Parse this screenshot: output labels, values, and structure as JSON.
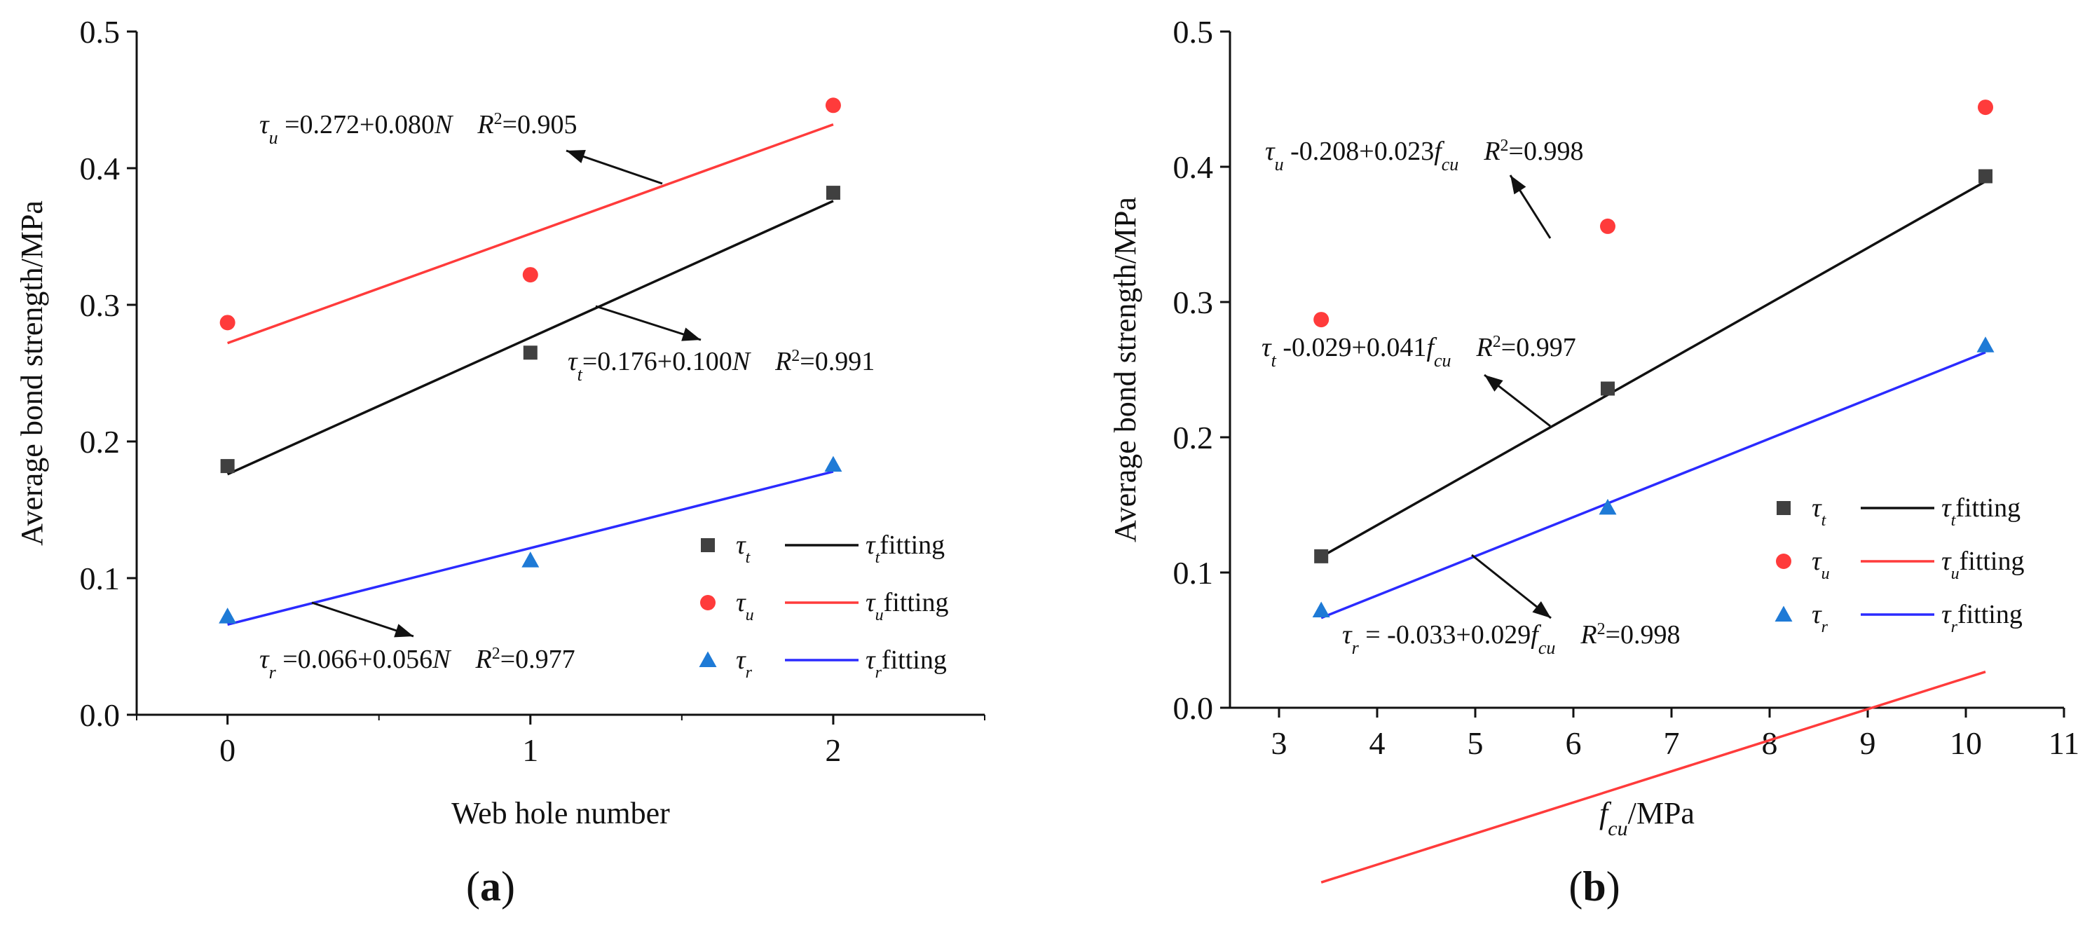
{
  "chart_data": [
    {
      "type": "scatter",
      "panel_label": "(a)",
      "panel_letter": "a",
      "xlabel": "Web hole number",
      "ylabel": "Average bond strength/MPa",
      "xlim": [
        -0.3,
        2.5
      ],
      "ylim": [
        0,
        0.5
      ],
      "xticks": [
        0,
        1,
        2
      ],
      "yticks": [
        "0.0",
        "0.1",
        "0.2",
        "0.3",
        "0.4",
        "0.5"
      ],
      "series": [
        {
          "key": "t",
          "name": "τ",
          "sub": "t",
          "color": "#404040",
          "marker": "square",
          "x": [
            0,
            1,
            2
          ],
          "y": [
            0.182,
            0.265,
            0.382
          ],
          "fit": {
            "intercept": 0.176,
            "slope": 0.1
          }
        },
        {
          "key": "u",
          "name": "τ",
          "sub": "u",
          "color": "#ff3b3b",
          "marker": "circle",
          "x": [
            0,
            1,
            2
          ],
          "y": [
            0.287,
            0.322,
            0.446
          ],
          "fit": {
            "intercept": 0.272,
            "slope": 0.08
          }
        },
        {
          "key": "r",
          "name": "τ",
          "sub": "r",
          "color": "#1e7ad6",
          "marker": "triangle",
          "x": [
            0,
            1,
            2
          ],
          "y": [
            0.072,
            0.113,
            0.183
          ],
          "fit": {
            "intercept": 0.066,
            "slope": 0.056
          },
          "line_color": "#2b2bff"
        }
      ],
      "fit_label": "fitting",
      "annotations": [
        {
          "key": "u",
          "text_pre": "τ",
          "sub": "u",
          "text_post": " =0.272+0.080",
          "var": "N",
          "var_sub": "",
          "r2": "=0.905"
        },
        {
          "key": "t",
          "text_pre": "τ",
          "sub": "t",
          "text_post": "=0.176+0.100",
          "var": "N",
          "var_sub": "",
          "r2": "=0.991"
        },
        {
          "key": "r",
          "text_pre": "τ",
          "sub": "r",
          "text_post": " =0.066+0.056",
          "var": "N",
          "var_sub": "",
          "r2": "=0.977"
        }
      ]
    },
    {
      "type": "scatter",
      "panel_label": "(b)",
      "panel_letter": "b",
      "xlabel_var": "f",
      "xlabel_sub": "cu",
      "xlabel_unit": "/MPa",
      "ylabel": "Average bond strength/MPa",
      "xlim": [
        2.5,
        11
      ],
      "ylim": [
        0,
        0.5
      ],
      "xticks": [
        3,
        4,
        5,
        6,
        7,
        8,
        9,
        10,
        11
      ],
      "yticks": [
        "0.0",
        "0.1",
        "0.2",
        "0.3",
        "0.4",
        "0.5"
      ],
      "series": [
        {
          "key": "t",
          "name": "τ",
          "sub": "t",
          "color": "#404040",
          "marker": "square",
          "x": [
            3.43,
            6.35,
            10.2
          ],
          "y": [
            0.112,
            0.236,
            0.393
          ],
          "fit": {
            "intercept": -0.029,
            "slope": 0.041
          }
        },
        {
          "key": "u",
          "name": "τ",
          "sub": "u",
          "color": "#ff3b3b",
          "marker": "circle",
          "x": [
            3.43,
            6.35,
            10.2
          ],
          "y": [
            0.287,
            0.356,
            0.444
          ],
          "fit": {
            "intercept": -0.208,
            "slope": 0.023
          }
        },
        {
          "key": "r",
          "name": "τ",
          "sub": "r",
          "color": "#1e7ad6",
          "marker": "triangle",
          "x": [
            3.43,
            6.35,
            10.2
          ],
          "y": [
            0.072,
            0.148,
            0.268
          ],
          "fit": {
            "intercept": -0.033,
            "slope": 0.029
          },
          "line_color": "#2b2bff"
        }
      ],
      "fit_label": "fitting",
      "annotations": [
        {
          "key": "u",
          "text_pre": "τ",
          "sub": "u",
          "text_post": " -0.208+0.023",
          "var": "f",
          "var_sub": "cu",
          "r2": "=0.998"
        },
        {
          "key": "t",
          "text_pre": "τ",
          "sub": "t",
          "text_post": " -0.029+0.041",
          "var": "f",
          "var_sub": "cu",
          "r2": "=0.997"
        },
        {
          "key": "r",
          "text_pre": "τ",
          "sub": "r",
          "text_post": " = -0.033+0.029",
          "var": "f",
          "var_sub": "cu",
          "r2": "=0.998"
        }
      ]
    }
  ]
}
